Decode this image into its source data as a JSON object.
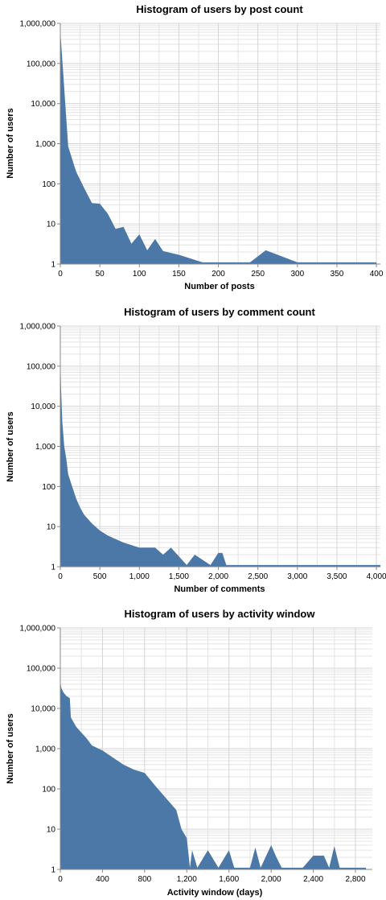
{
  "colors": {
    "area": "#4c78a8",
    "grid": "#dddddd",
    "axis": "#888888"
  },
  "chart_data": [
    {
      "type": "area",
      "title": "Histogram of users by post count",
      "xlabel": "Number of posts",
      "ylabel": "Number of users",
      "xlim": [
        0,
        405
      ],
      "ylim": [
        1,
        1000000
      ],
      "yscale": "log",
      "grid": true,
      "x_ticks": [
        0,
        50,
        100,
        150,
        200,
        250,
        300,
        350,
        400
      ],
      "x_tick_labels": [
        "0",
        "50",
        "100",
        "150",
        "200",
        "250",
        "300",
        "350",
        "400"
      ],
      "y_tick_labels": [
        "1",
        "10",
        "100",
        "1,000",
        "10,000",
        "100,000",
        "1,000,000"
      ],
      "x": [
        0,
        10,
        20,
        30,
        40,
        50,
        60,
        70,
        80,
        90,
        100,
        110,
        120,
        130,
        150,
        180,
        200,
        240,
        260,
        300,
        400
      ],
      "y": [
        650000,
        850,
        200,
        80,
        33,
        32,
        18,
        7.5,
        8.5,
        3.2,
        5.5,
        2.2,
        4.2,
        2.1,
        1.7,
        1.1,
        1.1,
        1.1,
        2.2,
        1.1,
        1.1
      ]
    },
    {
      "type": "area",
      "title": "Histogram of users by comment count",
      "xlabel": "Number of comments",
      "ylabel": "Number of users",
      "xlim": [
        0,
        4050
      ],
      "ylim": [
        1,
        1000000
      ],
      "yscale": "log",
      "grid": true,
      "x_ticks": [
        0,
        500,
        1000,
        1500,
        2000,
        2500,
        3000,
        3500,
        4000
      ],
      "x_tick_labels": [
        "0",
        "500",
        "1,000",
        "1,500",
        "2,000",
        "2,500",
        "3,000",
        "3,500",
        "4,000"
      ],
      "y_tick_labels": [
        "1",
        "10",
        "100",
        "1,000",
        "10,000",
        "100,000",
        "1,000,000"
      ],
      "x": [
        0,
        10,
        25,
        50,
        75,
        100,
        150,
        200,
        250,
        300,
        400,
        500,
        600,
        800,
        1000,
        1200,
        1300,
        1400,
        1600,
        1700,
        1900,
        2000,
        2050,
        2100,
        4050
      ],
      "y": [
        180000,
        25000,
        4000,
        1000,
        500,
        200,
        100,
        50,
        30,
        20,
        12,
        8,
        6,
        4,
        3,
        3,
        2,
        3,
        1.1,
        2,
        1.1,
        2.2,
        2.2,
        1.1,
        1.1
      ]
    },
    {
      "type": "area",
      "title": "Histogram of users by activity window",
      "xlabel": "Activity window (days)",
      "ylabel": "Number of users",
      "xlim": [
        0,
        2960
      ],
      "ylim": [
        1,
        1000000
      ],
      "yscale": "log",
      "grid": true,
      "x_ticks": [
        0,
        400,
        800,
        1200,
        1600,
        2000,
        2400,
        2800
      ],
      "x_tick_labels": [
        "0",
        "400",
        "800",
        "1,200",
        "1,600",
        "2,000",
        "2,400",
        "2,800"
      ],
      "y_tick_labels": [
        "1",
        "10",
        "100",
        "1,000",
        "10,000",
        "100,000",
        "1,000,000"
      ],
      "x": [
        0,
        10,
        30,
        60,
        90,
        100,
        150,
        200,
        250,
        300,
        400,
        500,
        600,
        700,
        800,
        900,
        1000,
        1100,
        1150,
        1200,
        1230,
        1250,
        1300,
        1400,
        1500,
        1600,
        1650,
        1700,
        1800,
        1850,
        1900,
        2000,
        2050,
        2100,
        2200,
        2300,
        2400,
        2500,
        2550,
        2600,
        2650,
        2700,
        2900
      ],
      "y": [
        45000,
        32000,
        25000,
        20000,
        18000,
        6000,
        3500,
        2500,
        1800,
        1200,
        900,
        600,
        400,
        300,
        250,
        120,
        60,
        30,
        10,
        6,
        1.1,
        3,
        1.1,
        3,
        1.1,
        3,
        1.1,
        1.1,
        1.1,
        3.5,
        1.1,
        4,
        2,
        1.1,
        1.1,
        1.1,
        2.2,
        2.2,
        1.1,
        3.8,
        1.1,
        1.1,
        1.1
      ]
    }
  ]
}
